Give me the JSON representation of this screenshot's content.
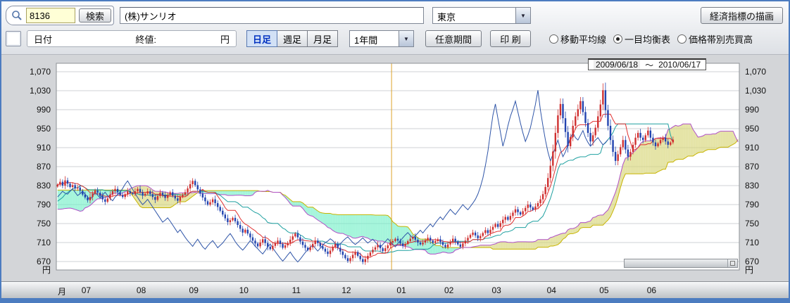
{
  "toolbar": {
    "search": {
      "code_value": "8136",
      "search_label": "検索",
      "company_value": "(株)サンリオ",
      "exchange_value": "東京"
    },
    "draw_indicators_label": "経済指標の描画",
    "readout": {
      "date_label": "日付",
      "close_label": "終値:",
      "unit_label": "円"
    },
    "period_tabs": [
      {
        "label": "日足",
        "selected": true
      },
      {
        "label": "週足",
        "selected": false
      },
      {
        "label": "月足",
        "selected": false
      }
    ],
    "range_value": "1年間",
    "custom_period_label": "任意期間",
    "print_label": "印 刷",
    "indicator_radios": [
      {
        "label": "移動平均線",
        "selected": false
      },
      {
        "label": "一目均衡表",
        "selected": true
      },
      {
        "label": "価格帯別売買高",
        "selected": false
      }
    ]
  },
  "chart_data": {
    "type": "candlestick",
    "overlay": "ichimoku",
    "date_from": "2009/06/18",
    "date_separator": "〜",
    "date_to": "2010/06/17",
    "y_unit": "円",
    "y_ticks": [
      1070,
      1030,
      990,
      950,
      910,
      870,
      830,
      790,
      750,
      710,
      670
    ],
    "x_unit_label": "月",
    "ichimoku_params": {
      "tenkan": 9,
      "kijun": 26,
      "senkou_b": 52,
      "shift": 26
    },
    "pre_closes": [
      880,
      900,
      915,
      920,
      910,
      896,
      881,
      866,
      851,
      836,
      821,
      806,
      791,
      776,
      766,
      756,
      748,
      741,
      733,
      727,
      721,
      727,
      735,
      743,
      751,
      759,
      746,
      753,
      761,
      769,
      777,
      785,
      793,
      801,
      809,
      805,
      813,
      821,
      816,
      823,
      829,
      835,
      841,
      836,
      831,
      837,
      833,
      829,
      835,
      831,
      827,
      833
    ],
    "months": [
      {
        "label": "",
        "closes": [
          832,
          838,
          830,
          841,
          834,
          827,
          831,
          824
        ]
      },
      {
        "label": "07",
        "closes": [
          826,
          819,
          811,
          805,
          799,
          806,
          813,
          820,
          815,
          808,
          801,
          796,
          803,
          811,
          818,
          823,
          816,
          810,
          806,
          812,
          818,
          814
        ]
      },
      {
        "label": "08",
        "closes": [
          812,
          818,
          823,
          816,
          809,
          813,
          818,
          812,
          806,
          800,
          808,
          815,
          810,
          804,
          810,
          816,
          809,
          803,
          798,
          806,
          811
        ]
      },
      {
        "label": "09",
        "closes": [
          816,
          824,
          833,
          840,
          831,
          822,
          813,
          805,
          797,
          790,
          795,
          801,
          793,
          785,
          777,
          769,
          761,
          753,
          757,
          762
        ]
      },
      {
        "label": "10",
        "closes": [
          755,
          747,
          739,
          731,
          737,
          729,
          721,
          714,
          708,
          702,
          710,
          717,
          709,
          701,
          696,
          703,
          709,
          714,
          707,
          699,
          704
        ]
      },
      {
        "label": "11",
        "closes": [
          709,
          716,
          723,
          729,
          721,
          712,
          705,
          699,
          694,
          700,
          707,
          714,
          709,
          702,
          697,
          691,
          686,
          693,
          701,
          707
        ]
      },
      {
        "label": "12",
        "closes": [
          699,
          691,
          684,
          677,
          671,
          677,
          684,
          690,
          682,
          675,
          669,
          675,
          682,
          689,
          695,
          700,
          705,
          698,
          692,
          698,
          704,
          710
        ]
      },
      {
        "label": "01",
        "closes": [
          713,
          718,
          714,
          708,
          703,
          707,
          713,
          718,
          722,
          716,
          710,
          706,
          710,
          715,
          720,
          714,
          709,
          713,
          717
        ]
      },
      {
        "label": "02",
        "closes": [
          711,
          705,
          700,
          706,
          712,
          718,
          712,
          706,
          701,
          708,
          714,
          720,
          726,
          731,
          725,
          719,
          724,
          730,
          736
        ]
      },
      {
        "label": "03",
        "closes": [
          730,
          737,
          743,
          749,
          743,
          751,
          758,
          764,
          758,
          766,
          773,
          780,
          774,
          769,
          776,
          783,
          790,
          784,
          779,
          786,
          793,
          801
        ]
      },
      {
        "label": "04",
        "closes": [
          812,
          827,
          846,
          872,
          902,
          941,
          978,
          1002,
          972,
          943,
          913,
          932,
          956,
          976,
          991,
          1008,
          985,
          962,
          941,
          923,
          936
        ]
      },
      {
        "label": "05",
        "closes": [
          952,
          976,
          1001,
          1031,
          989,
          956,
          926,
          901,
          882,
          896,
          911,
          926,
          906,
          891,
          901,
          916,
          931,
          941,
          931
        ]
      },
      {
        "label": "06",
        "closes": [
          926,
          936,
          946,
          931,
          921,
          913,
          919,
          926,
          931,
          923,
          916,
          921,
          927
        ]
      }
    ],
    "colors": {
      "up_candle": "#d03030",
      "down_candle": "#2244b0",
      "tenkan": "#e03030",
      "kijun": "#1fa0a0",
      "senkou_a": "#b050c8",
      "senkou_b": "#c8b400",
      "chikou": "#2f55a8",
      "cloud_a_above": "rgba(215,213,120,0.65)",
      "cloud_b_above": "rgba(105,238,195,0.60)",
      "year_line": "#dca32a",
      "grid": "#cfd2d6"
    }
  }
}
